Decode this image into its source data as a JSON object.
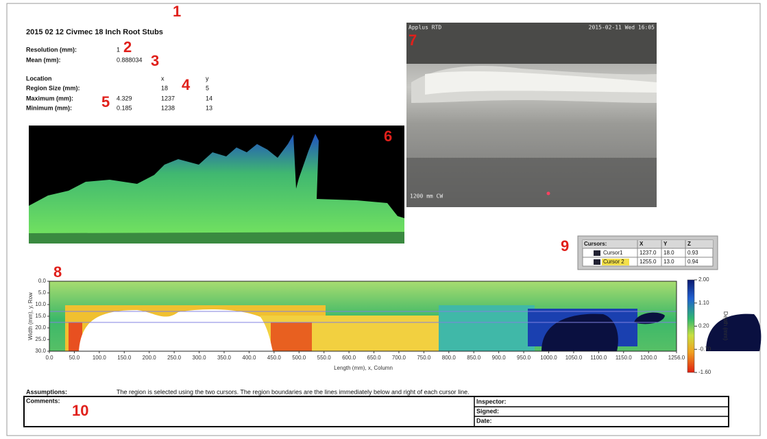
{
  "markers": [
    "1",
    "2",
    "3",
    "4",
    "5",
    "6",
    "7",
    "8",
    "9",
    "10"
  ],
  "report": {
    "title": "2015 02 12 Civmec 18 Inch Root Stubs",
    "resolution_label": "Resolution (mm):",
    "resolution": "1",
    "mean_label": "Mean (mm):",
    "mean": "0.888034",
    "location": {
      "header": [
        "Location",
        "x",
        "y"
      ],
      "rows": [
        {
          "label": "Region Size (mm):",
          "x": "18",
          "y": "5"
        },
        {
          "label": "Maximum (mm):",
          "value": "4.329",
          "x": "1237",
          "y": "14"
        },
        {
          "label": "Minimum (mm):",
          "value": "0.185",
          "x": "1238",
          "y": "13"
        }
      ]
    }
  },
  "camera": {
    "brand": "Applus RTD",
    "timestamp": "2015-02-11 Wed 16:05",
    "position": "1200 mm CW"
  },
  "cursors": {
    "header": [
      "Cursors:",
      "X",
      "Y",
      "Z"
    ],
    "rows": [
      [
        "Cursor1",
        "1237.0",
        "18.0",
        "0.93"
      ],
      [
        "Cursor 2",
        "1255.0",
        "13.0",
        "0.94"
      ]
    ]
  },
  "heatmap": {
    "xlabel": "Length (mm), x, Column",
    "ylabel": "Width (mm), y, Row",
    "clabel": "Depth (mm)",
    "xlim": [
      0,
      1256
    ],
    "ylim": [
      0,
      30
    ],
    "clim": [
      -1.6,
      2
    ],
    "xticks": [
      {
        "value": 0,
        "label": "0.0"
      },
      {
        "value": 50,
        "label": "50.0"
      },
      {
        "value": 100,
        "label": "100.0"
      },
      {
        "value": 150,
        "label": "150.0"
      },
      {
        "value": 200,
        "label": "200.0"
      },
      {
        "value": 250,
        "label": "250.0"
      },
      {
        "value": 300,
        "label": "300.0"
      },
      {
        "value": 350,
        "label": "350.0"
      },
      {
        "value": 400,
        "label": "400.0"
      },
      {
        "value": 450,
        "label": "450.0"
      },
      {
        "value": 500,
        "label": "500.0"
      },
      {
        "value": 550,
        "label": "550.0"
      },
      {
        "value": 600,
        "label": "600.0"
      },
      {
        "value": 650,
        "label": "650.0"
      },
      {
        "value": 700,
        "label": "700.0"
      },
      {
        "value": 750,
        "label": "750.0"
      },
      {
        "value": 800,
        "label": "800.0"
      },
      {
        "value": 850,
        "label": "850.0"
      },
      {
        "value": 900,
        "label": "900.0"
      },
      {
        "value": 950,
        "label": "950.0"
      },
      {
        "value": 1000,
        "label": "1000.0"
      },
      {
        "value": 1050,
        "label": "1050.0"
      },
      {
        "value": 1100,
        "label": "1100.0"
      },
      {
        "value": 1150,
        "label": "1150.0"
      },
      {
        "value": 1200,
        "label": "1200.0"
      },
      {
        "value": 1256,
        "label": "1256.0"
      }
    ],
    "yticks": [
      {
        "value": 0,
        "label": "0.0"
      },
      {
        "value": 5,
        "label": "5.0"
      },
      {
        "value": 10,
        "label": "10.0"
      },
      {
        "value": 15,
        "label": "15.0"
      },
      {
        "value": 20,
        "label": "20.0"
      },
      {
        "value": 25,
        "label": "25.0"
      },
      {
        "value": 30,
        "label": "30.0"
      }
    ],
    "cticks": [
      {
        "value": 2,
        "label": "2.00"
      },
      {
        "value": 1.1,
        "label": "1.10"
      },
      {
        "value": 0.2,
        "label": "0.20"
      },
      {
        "value": -0.7,
        "label": "-0.70"
      },
      {
        "value": -1.6,
        "label": "-1.60"
      }
    ]
  },
  "footer": {
    "assumptions_label": "Assumptions:",
    "assumptions": "The region is selected using the two cursors. The region boundaries are the lines immediately below and right of each cursor line.",
    "comments": "Comments:",
    "inspector": "Inspector:",
    "signed": "Signed:",
    "date": "Date:"
  }
}
